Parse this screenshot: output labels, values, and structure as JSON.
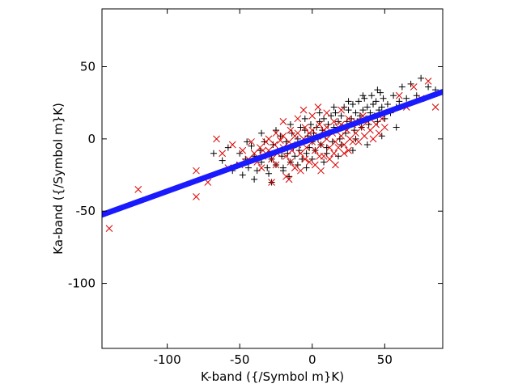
{
  "chart_data": {
    "type": "scatter",
    "title": "",
    "xlabel": "K-band ({/Symbol m}K)",
    "ylabel": "Ka-band ({/Symbol m}K)",
    "xlim": [
      -145,
      90
    ],
    "ylim": [
      -145,
      90
    ],
    "x_ticks": [
      -100,
      -50,
      0,
      50
    ],
    "y_ticks": [
      50,
      0,
      -50,
      -100
    ],
    "x_tick_labels": [
      "-100",
      "-50",
      "0",
      "50"
    ],
    "y_tick_labels": [
      "50",
      "0",
      "-50",
      "-100"
    ],
    "grid": false,
    "legend": "none",
    "series": [
      {
        "marker": "plus",
        "color": "#000000",
        "points": [
          [
            -68,
            -10
          ],
          [
            -62,
            -15
          ],
          [
            -58,
            -6
          ],
          [
            -55,
            -22
          ],
          [
            -52,
            -18
          ],
          [
            -50,
            -10
          ],
          [
            -48,
            -25
          ],
          [
            -46,
            -14
          ],
          [
            -44,
            -20
          ],
          [
            -42,
            -5
          ],
          [
            -40,
            -12
          ],
          [
            -38,
            -22
          ],
          [
            -36,
            -8
          ],
          [
            -35,
            -16
          ],
          [
            -33,
            -2
          ],
          [
            -31,
            -20
          ],
          [
            -30,
            -10
          ],
          [
            -28,
            -14
          ],
          [
            -27,
            -4
          ],
          [
            -25,
            -18
          ],
          [
            -24,
            -8
          ],
          [
            -22,
            2
          ],
          [
            -21,
            -12
          ],
          [
            -20,
            -20
          ],
          [
            -18,
            -2
          ],
          [
            -17,
            -10
          ],
          [
            -15,
            -16
          ],
          [
            -14,
            4
          ],
          [
            -13,
            -6
          ],
          [
            -12,
            -12
          ],
          [
            -10,
            0
          ],
          [
            -9,
            -8
          ],
          [
            -8,
            8
          ],
          [
            -7,
            -14
          ],
          [
            -6,
            -2
          ],
          [
            -5,
            6
          ],
          [
            -4,
            -10
          ],
          [
            -3,
            2
          ],
          [
            -2,
            -6
          ],
          [
            -1,
            10
          ],
          [
            0,
            -2
          ],
          [
            1,
            4
          ],
          [
            2,
            -8
          ],
          [
            3,
            8
          ],
          [
            4,
            0
          ],
          [
            5,
            12
          ],
          [
            6,
            -4
          ],
          [
            7,
            6
          ],
          [
            8,
            14
          ],
          [
            9,
            2
          ],
          [
            10,
            -6
          ],
          [
            11,
            10
          ],
          [
            12,
            4
          ],
          [
            13,
            16
          ],
          [
            14,
            -2
          ],
          [
            15,
            8
          ],
          [
            16,
            18
          ],
          [
            17,
            6
          ],
          [
            18,
            12
          ],
          [
            19,
            0
          ],
          [
            20,
            16
          ],
          [
            21,
            8
          ],
          [
            22,
            22
          ],
          [
            23,
            4
          ],
          [
            24,
            12
          ],
          [
            25,
            20
          ],
          [
            26,
            10
          ],
          [
            27,
            14
          ],
          [
            28,
            24
          ],
          [
            29,
            6
          ],
          [
            30,
            18
          ],
          [
            31,
            12
          ],
          [
            32,
            26
          ],
          [
            33,
            16
          ],
          [
            34,
            8
          ],
          [
            35,
            20
          ],
          [
            36,
            28
          ],
          [
            37,
            14
          ],
          [
            38,
            22
          ],
          [
            39,
            10
          ],
          [
            40,
            18
          ],
          [
            41,
            30
          ],
          [
            42,
            24
          ],
          [
            43,
            16
          ],
          [
            44,
            26
          ],
          [
            45,
            12
          ],
          [
            46,
            20
          ],
          [
            47,
            32
          ],
          [
            48,
            22
          ],
          [
            49,
            28
          ],
          [
            50,
            14
          ],
          [
            52,
            24
          ],
          [
            54,
            18
          ],
          [
            56,
            30
          ],
          [
            58,
            22
          ],
          [
            60,
            26
          ],
          [
            62,
            36
          ],
          [
            65,
            28
          ],
          [
            68,
            38
          ],
          [
            72,
            30
          ],
          [
            75,
            42
          ],
          [
            80,
            36
          ],
          [
            85,
            34
          ],
          [
            -30,
            -24
          ],
          [
            -20,
            -22
          ],
          [
            -10,
            -18
          ],
          [
            0,
            -14
          ],
          [
            10,
            -10
          ],
          [
            20,
            -4
          ],
          [
            30,
            0
          ],
          [
            -45,
            -2
          ],
          [
            -35,
            4
          ],
          [
            -25,
            6
          ],
          [
            -15,
            10
          ],
          [
            -5,
            14
          ],
          [
            5,
            18
          ],
          [
            15,
            22
          ],
          [
            25,
            26
          ],
          [
            35,
            30
          ],
          [
            45,
            34
          ],
          [
            -40,
            -28
          ],
          [
            -28,
            -30
          ],
          [
            -16,
            -26
          ],
          [
            -4,
            -20
          ],
          [
            8,
            -16
          ],
          [
            18,
            -12
          ],
          [
            28,
            -8
          ],
          [
            38,
            -4
          ],
          [
            48,
            2
          ],
          [
            58,
            8
          ]
        ]
      },
      {
        "marker": "cross",
        "color": "#dd0000",
        "points": [
          [
            -140,
            -62
          ],
          [
            -120,
            -35
          ],
          [
            -80,
            -22
          ],
          [
            -80,
            -40
          ],
          [
            -72,
            -30
          ],
          [
            -66,
            0
          ],
          [
            -62,
            -10
          ],
          [
            -55,
            -4
          ],
          [
            -50,
            -18
          ],
          [
            -48,
            -8
          ],
          [
            -44,
            -14
          ],
          [
            -42,
            -2
          ],
          [
            -40,
            -10
          ],
          [
            -38,
            -16
          ],
          [
            -36,
            -6
          ],
          [
            -34,
            -12
          ],
          [
            -32,
            -2
          ],
          [
            -30,
            -8
          ],
          [
            -28,
            -14
          ],
          [
            -26,
            -4
          ],
          [
            -24,
            -10
          ],
          [
            -22,
            -1
          ],
          [
            -20,
            -6
          ],
          [
            -18,
            -12
          ],
          [
            -16,
            -2
          ],
          [
            -14,
            -8
          ],
          [
            -12,
            2
          ],
          [
            -10,
            -4
          ],
          [
            -8,
            -10
          ],
          [
            -6,
            0
          ],
          [
            -4,
            -6
          ],
          [
            -2,
            4
          ],
          [
            0,
            -2
          ],
          [
            2,
            -8
          ],
          [
            4,
            2
          ],
          [
            6,
            -4
          ],
          [
            8,
            6
          ],
          [
            10,
            0
          ],
          [
            12,
            -6
          ],
          [
            14,
            4
          ],
          [
            16,
            -2
          ],
          [
            18,
            8
          ],
          [
            20,
            2
          ],
          [
            22,
            -4
          ],
          [
            24,
            6
          ],
          [
            26,
            0
          ],
          [
            28,
            10
          ],
          [
            30,
            4
          ],
          [
            32,
            -2
          ],
          [
            34,
            8
          ],
          [
            36,
            2
          ],
          [
            38,
            12
          ],
          [
            40,
            6
          ],
          [
            42,
            0
          ],
          [
            44,
            10
          ],
          [
            46,
            4
          ],
          [
            48,
            14
          ],
          [
            50,
            8
          ],
          [
            -25,
            4
          ],
          [
            -15,
            6
          ],
          [
            -5,
            8
          ],
          [
            5,
            10
          ],
          [
            15,
            12
          ],
          [
            25,
            14
          ],
          [
            35,
            16
          ],
          [
            -35,
            -20
          ],
          [
            -25,
            -18
          ],
          [
            -15,
            -16
          ],
          [
            -5,
            -14
          ],
          [
            5,
            -12
          ],
          [
            15,
            -10
          ],
          [
            25,
            -8
          ],
          [
            -20,
            12
          ],
          [
            -10,
            14
          ],
          [
            0,
            16
          ],
          [
            10,
            18
          ],
          [
            20,
            20
          ],
          [
            -28,
            -30
          ],
          [
            -18,
            -26
          ],
          [
            -8,
            -22
          ],
          [
            2,
            -18
          ],
          [
            12,
            -14
          ],
          [
            22,
            -10
          ],
          [
            -12,
            -20
          ],
          [
            -2,
            -16
          ],
          [
            8,
            -12
          ],
          [
            18,
            -6
          ],
          [
            28,
            -2
          ],
          [
            -30,
            0
          ],
          [
            -20,
            2
          ],
          [
            -10,
            4
          ],
          [
            0,
            6
          ],
          [
            10,
            8
          ],
          [
            20,
            10
          ],
          [
            30,
            12
          ],
          [
            40,
            14
          ],
          [
            65,
            22
          ],
          [
            75,
            28
          ],
          [
            85,
            22
          ],
          [
            60,
            30
          ],
          [
            70,
            36
          ],
          [
            80,
            40
          ],
          [
            -6,
            20
          ],
          [
            4,
            22
          ],
          [
            -16,
            -28
          ],
          [
            6,
            -22
          ],
          [
            16,
            -18
          ],
          [
            -34,
            -8
          ],
          [
            -46,
            -16
          ],
          [
            -58,
            -20
          ]
        ]
      },
      {
        "name": "",
        "marker": "line",
        "color": "#1a1aff",
        "x": [
          -145,
          90
        ],
        "y": [
          -52.5,
          32.6
        ]
      }
    ]
  }
}
